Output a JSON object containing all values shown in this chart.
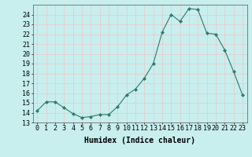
{
  "x": [
    0,
    1,
    2,
    3,
    4,
    5,
    6,
    7,
    8,
    9,
    10,
    11,
    12,
    13,
    14,
    15,
    16,
    17,
    18,
    19,
    20,
    21,
    22,
    23
  ],
  "y": [
    14.2,
    15.1,
    15.1,
    14.5,
    13.9,
    13.5,
    13.6,
    13.8,
    13.8,
    14.6,
    15.8,
    16.4,
    17.5,
    19.0,
    22.2,
    24.0,
    23.3,
    24.6,
    24.5,
    22.1,
    22.0,
    20.4,
    18.2,
    15.8
  ],
  "line_color": "#2d7a6e",
  "marker": "D",
  "marker_size": 2.0,
  "background_color": "#c8eeee",
  "grid_color": "#e8c8c8",
  "xlabel": "Humidex (Indice chaleur)",
  "xlim": [
    -0.5,
    23.5
  ],
  "ylim": [
    13,
    25
  ],
  "yticks": [
    13,
    14,
    15,
    16,
    17,
    18,
    19,
    20,
    21,
    22,
    23,
    24
  ],
  "xticks": [
    0,
    1,
    2,
    3,
    4,
    5,
    6,
    7,
    8,
    9,
    10,
    11,
    12,
    13,
    14,
    15,
    16,
    17,
    18,
    19,
    20,
    21,
    22,
    23
  ],
  "xtick_labels": [
    "0",
    "1",
    "2",
    "3",
    "4",
    "5",
    "6",
    "7",
    "8",
    "9",
    "10",
    "11",
    "12",
    "13",
    "14",
    "15",
    "16",
    "17",
    "18",
    "19",
    "20",
    "21",
    "22",
    "23"
  ],
  "xlabel_fontsize": 7,
  "tick_fontsize": 6
}
